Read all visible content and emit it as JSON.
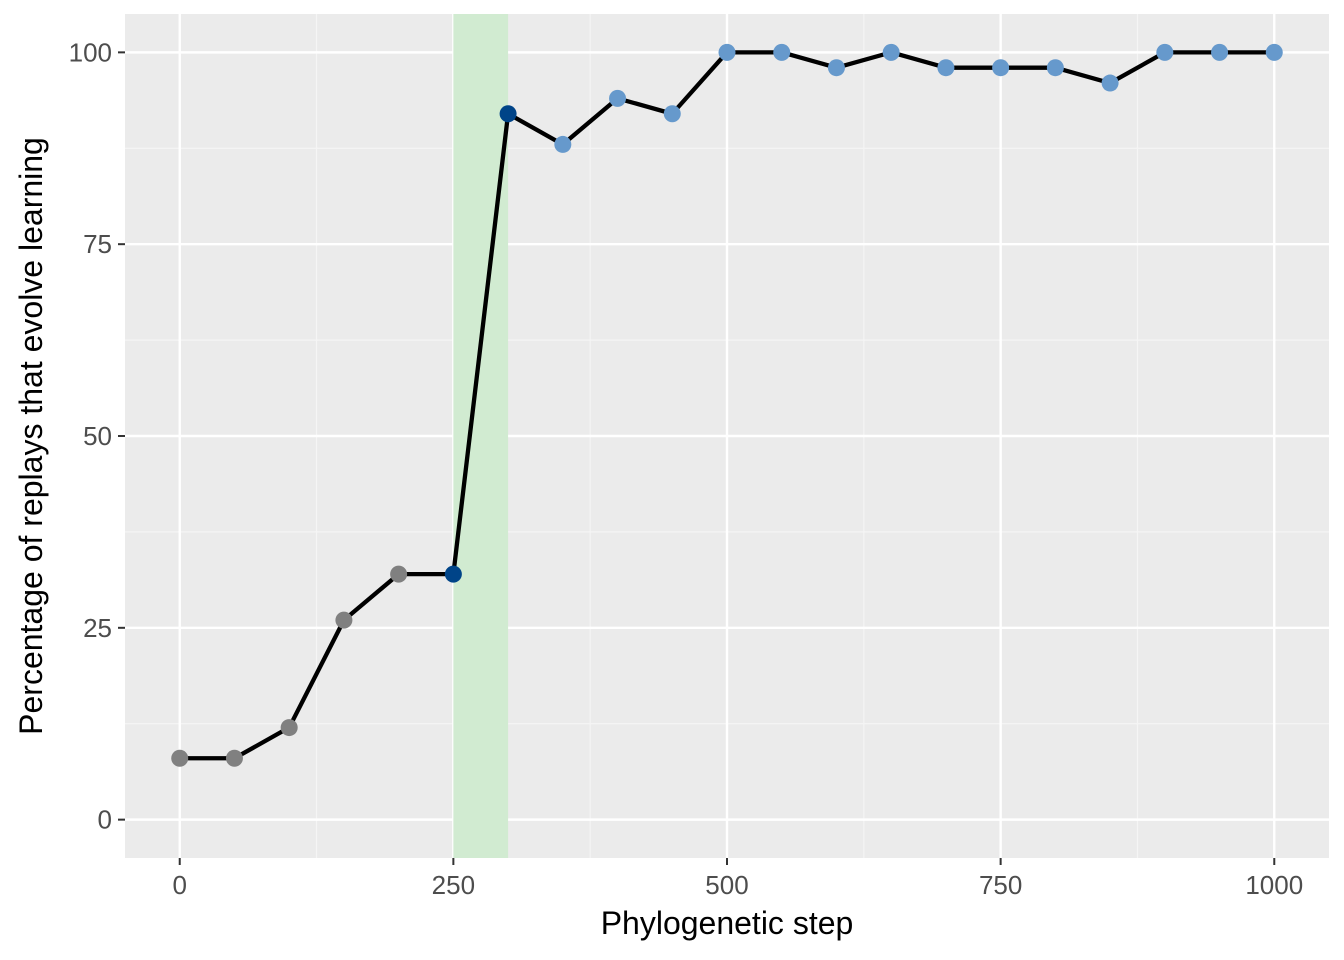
{
  "chart_data": {
    "type": "line",
    "title": "",
    "xlabel": "Phylogenetic step",
    "ylabel": "Percentage of replays that evolve learning",
    "xlim": [
      -50,
      1050
    ],
    "ylim": [
      -5,
      105
    ],
    "x_ticks": [
      0,
      250,
      500,
      750,
      1000
    ],
    "y_ticks": [
      0,
      25,
      50,
      75,
      100
    ],
    "grid": true,
    "legend": "none",
    "highlight_band": {
      "x_start": 250,
      "x_end": 300,
      "color": "#d1ebd1"
    },
    "series": [
      {
        "line_color": "#000000",
        "x": [
          0,
          50,
          100,
          150,
          200,
          250,
          300,
          350,
          400,
          450,
          500,
          550,
          600,
          650,
          700,
          750,
          800,
          850,
          900,
          950,
          1000
        ],
        "y": [
          8,
          8,
          12,
          26,
          32,
          32,
          92,
          88,
          94,
          92,
          100,
          100,
          98,
          100,
          98,
          98,
          98,
          96,
          100,
          100,
          100
        ],
        "point_colors": [
          "#808080",
          "#808080",
          "#808080",
          "#808080",
          "#808080",
          "#004488",
          "#004488",
          "#6699cc",
          "#6699cc",
          "#6699cc",
          "#6699cc",
          "#6699cc",
          "#6699cc",
          "#6699cc",
          "#6699cc",
          "#6699cc",
          "#6699cc",
          "#6699cc",
          "#6699cc",
          "#6699cc",
          "#6699cc"
        ]
      }
    ],
    "colors": {
      "panel_background": "#ebebeb",
      "grid_major": "#ffffff",
      "grid_minor": "#f5f5f5",
      "pre_point": "#808080",
      "transition_point": "#004488",
      "post_point": "#6699cc"
    }
  }
}
